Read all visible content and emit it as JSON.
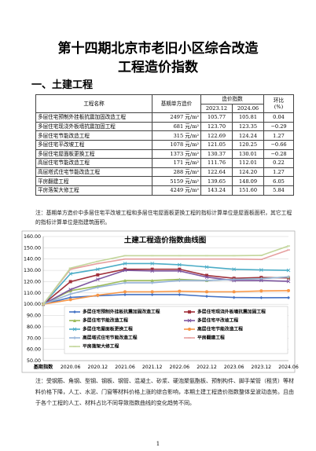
{
  "header": {
    "title_line1": "第十四期北京市老旧小区综合改造",
    "title_line2": "工程造价指数"
  },
  "section": "一、土建工程",
  "table": {
    "header": {
      "name": "工程名称",
      "cost": "基期单方造价",
      "index": "造价指数",
      "p1": "2023.12",
      "p2": "2024.06",
      "change": "环比\n(%)"
    },
    "rows": [
      [
        "多层住宅预制外挂板抗震加固改造工程",
        "2497 元/m²",
        "105.77",
        "105.81",
        "0.04"
      ],
      [
        "多层住宅现浇外板墙抗震加固工程",
        "681 元/m²",
        "123.70",
        "123.35",
        "−0.29"
      ],
      [
        "多层住宅节能改造工程",
        "315 元/m²",
        "122.69",
        "124.24",
        "1.27"
      ],
      [
        "多层住宅平改坡工程",
        "1078 元/m²",
        "121.05",
        "120.25",
        "−0.66"
      ],
      [
        "多层住宅屋面板更换工程",
        "1373 元/m²",
        "130.37",
        "130.01",
        "−0.28"
      ],
      [
        "高层住宅节能改造工程",
        "171 元/m²",
        "111.76",
        "112.01",
        "0.22"
      ],
      [
        "高层塔式住宅节能改造工程",
        "288 元/m²",
        "122.64",
        "124.20",
        "1.27"
      ],
      [
        "平房翻建工程",
        "5159 元/m²",
        "139.65",
        "148.09",
        "6.05"
      ],
      [
        "平房落架大修工程",
        "4249 元/m²",
        "143.24",
        "151.60",
        "5.84"
      ]
    ]
  },
  "note": "注：基期单方造价中多层住宅平改坡工程和多层住宅屋面板更换工程的指标计算单位是屋面板面积，其它工程的指标计算单位是指建筑面积。",
  "chart_data": {
    "type": "line",
    "title": "土建工程造价指数曲线图",
    "categories": [
      "基期指数",
      "2020.06",
      "2020.12",
      "2021.06",
      "2021.12",
      "2022.06",
      "2022.12",
      "2023.06",
      "2023.12",
      "2024.06"
    ],
    "ylim": [
      50,
      160
    ],
    "yticks": [
      {
        "value": 50,
        "label": "50.00"
      },
      {
        "value": 60,
        "label": "60.00"
      },
      {
        "value": 70,
        "label": "70.00"
      },
      {
        "value": 80,
        "label": "80.00"
      },
      {
        "value": 90,
        "label": "90.00"
      },
      {
        "value": 100,
        "label": "100.00"
      },
      {
        "value": 110,
        "label": "110.00"
      },
      {
        "value": 120,
        "label": "120.00"
      },
      {
        "value": 130,
        "label": "130.00"
      },
      {
        "value": 140,
        "label": "140.00"
      },
      {
        "value": 150,
        "label": "150.00"
      },
      {
        "value": 160,
        "label": "160.00"
      }
    ],
    "series": [
      {
        "name": "多层住宅预制外挂板抗震加固改造工程",
        "color": "#4472c4",
        "marker": "diamond",
        "values": [
          100,
          106,
          107.5,
          108.5,
          108.5,
          108.5,
          107,
          106,
          105.77,
          105.81
        ]
      },
      {
        "name": "多层住宅现浇外板墙抗震加固工程",
        "color": "#a0303a",
        "marker": "square",
        "values": [
          100,
          120,
          126,
          131,
          131,
          131,
          125.5,
          123,
          123.7,
          123.35
        ]
      },
      {
        "name": "多层住宅节能改造工程",
        "color": "#9bbb59",
        "marker": "triangle",
        "values": [
          100,
          112,
          116,
          121,
          121,
          122,
          121,
          122,
          122.69,
          124.24
        ]
      },
      {
        "name": "多层住宅平改坡工程",
        "color": "#7e57a0",
        "marker": "cross",
        "values": [
          100,
          113,
          122,
          130,
          129.5,
          129.5,
          124,
          121,
          121.05,
          120.25
        ]
      },
      {
        "name": "多层住宅屋面板更换工程",
        "color": "#4bacc6",
        "marker": "cross",
        "values": [
          100,
          127,
          131,
          136,
          136,
          135,
          133,
          131,
          130.37,
          130.01
        ]
      },
      {
        "name": "高层住宅节能改造工程",
        "color": "#f79646",
        "marker": "circle",
        "values": [
          100,
          104,
          108,
          111,
          111,
          111.5,
          111,
          111,
          111.76,
          112.01
        ]
      },
      {
        "name": "高层塔式住宅节能改造工程",
        "color": "#95b3d7",
        "marker": "plus",
        "values": [
          100,
          109,
          115,
          119,
          119,
          121,
          121,
          122,
          122.64,
          124.2
        ]
      },
      {
        "name": "平房翻建工程",
        "color": "#e6a0a0",
        "marker": "dash",
        "values": [
          100,
          131,
          136,
          140,
          140,
          140,
          140,
          140,
          139.65,
          148.09
        ]
      },
      {
        "name": "平房落架大修工程",
        "color": "#c3d69b",
        "marker": "dash",
        "values": [
          100,
          132,
          138,
          143,
          143,
          143,
          143,
          143,
          143.24,
          151.6
        ]
      }
    ]
  },
  "footnote": "注：受钢筋、角钢、型钢、钢板、钢管、混凝土、砂浆、硬泡聚氨酯板、预制构件、脚手架管（租赁）等材料价格下降，人工、水泥、门窗等材料价格上涨的综合影响，本期土建工程造价指数整体呈波动态势。且由于各个工程的人工、材料占比不同导致指数曲线的变化趋势不同。",
  "page_number": "1"
}
